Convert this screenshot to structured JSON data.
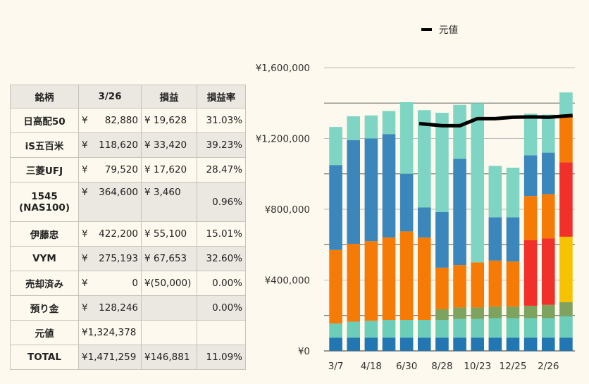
{
  "table": {
    "headers": [
      "銘柄",
      "3/26",
      "損益",
      "損益率"
    ],
    "rows": [
      {
        "name": "日高配50",
        "value": "82,880",
        "profit": "¥ 19,628",
        "rate": "31.03%"
      },
      {
        "name": "iS五百米",
        "value": "118,620",
        "profit": "¥ 33,420",
        "rate": "39.23%"
      },
      {
        "name": "三菱UFJ",
        "value": "79,520",
        "profit": "¥ 17,620",
        "rate": "28.47%"
      },
      {
        "name": "1545",
        "name2": "(NAS100)",
        "value": "364,600",
        "profit": "¥ 3,460",
        "rate": "0.96%"
      },
      {
        "name": "伊藤忠",
        "value": "422,200",
        "profit": "¥ 55,100",
        "rate": "15.01%"
      },
      {
        "name": "VYM",
        "value": "275,193",
        "profit": "¥ 67,653",
        "rate": "32.60%"
      },
      {
        "name": "売却済み",
        "value": "0",
        "profit": "¥(50,000)",
        "rate": "0.00%"
      },
      {
        "name": "預り金",
        "value": "128,246",
        "profit": "",
        "rate": "0.00%"
      }
    ],
    "genka": {
      "name": "元値",
      "value": "¥1,324,378"
    },
    "total": {
      "name": "TOTAL",
      "value": "¥1,471,259",
      "profit": "¥146,881",
      "rate": "11.09%"
    }
  },
  "chart_data": {
    "type": "bar",
    "stacked": true,
    "x_tick_labels": [
      "3/7",
      "4/18",
      "6/30",
      "8/28",
      "10/23",
      "12/25",
      "2/26"
    ],
    "y_tick_labels": [
      "¥0",
      "¥400,000",
      "¥800,000",
      "¥1,200,000",
      "¥1,600,000"
    ],
    "ylim": [
      0,
      1600000
    ],
    "legend": [
      {
        "name": "元値",
        "color": "#000000"
      }
    ],
    "series": [
      {
        "color": "#2277b2",
        "values": [
          75000,
          75000,
          75000,
          75000,
          75000,
          75000,
          75000,
          75000,
          75000,
          75000,
          75000,
          75000,
          75000,
          75000
        ]
      },
      {
        "color": "#6ccdb8",
        "values": [
          80000,
          90000,
          95000,
          100000,
          100000,
          100000,
          100000,
          105000,
          105000,
          110000,
          110000,
          110000,
          110000,
          120000
        ]
      },
      {
        "color": "#7da35e",
        "values": [
          0,
          0,
          0,
          0,
          0,
          0,
          60000,
          65000,
          65000,
          65000,
          65000,
          70000,
          75000,
          80000
        ]
      },
      {
        "color": "#f7c300",
        "values": [
          0,
          0,
          0,
          0,
          0,
          0,
          0,
          0,
          0,
          0,
          0,
          0,
          0,
          370000
        ]
      },
      {
        "color": "#f2302a",
        "values": [
          0,
          0,
          0,
          0,
          0,
          0,
          0,
          0,
          0,
          0,
          0,
          370000,
          375000,
          420000
        ]
      },
      {
        "color": "#f57b06",
        "values": [
          415000,
          440000,
          450000,
          465000,
          500000,
          465000,
          235000,
          240000,
          255000,
          260000,
          255000,
          250000,
          250000,
          270000
        ]
      },
      {
        "color": "#3b87bb",
        "values": [
          480000,
          585000,
          580000,
          585000,
          325000,
          170000,
          315000,
          600000,
          0,
          245000,
          250000,
          230000,
          235000,
          0
        ]
      },
      {
        "color": "#7ed5c3",
        "values": [
          215000,
          135000,
          130000,
          130000,
          405000,
          550000,
          560000,
          305000,
          900000,
          290000,
          280000,
          235000,
          215000,
          125000
        ]
      }
    ],
    "line": {
      "name": "元値",
      "start_index": 5,
      "values": [
        1284000,
        1272000,
        1272000,
        1312000,
        1312000,
        1320000,
        1322000,
        1320000,
        1330000
      ]
    }
  }
}
